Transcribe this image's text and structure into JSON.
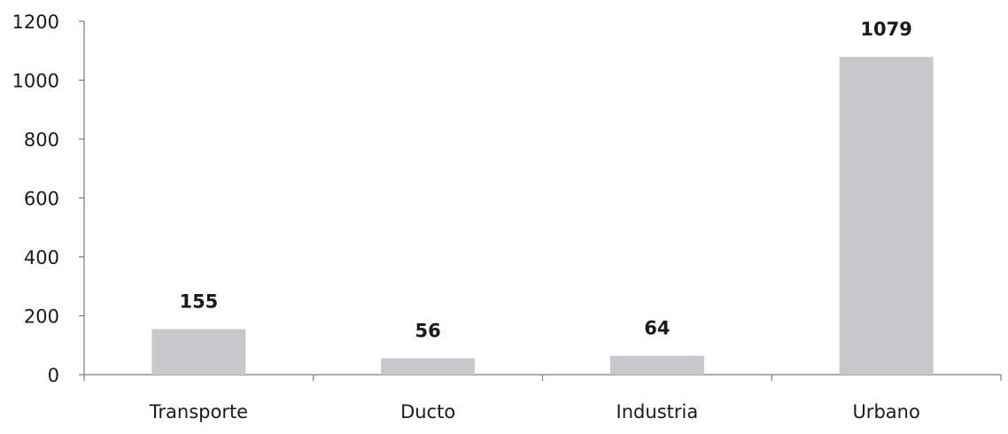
{
  "chart_data": {
    "type": "bar",
    "categories": [
      "Transporte",
      "Ducto",
      "Industria",
      "Urbano"
    ],
    "values": [
      155,
      56,
      64,
      1079
    ],
    "data_labels": [
      "155",
      "56",
      "64",
      "1079"
    ],
    "title": "",
    "xlabel": "",
    "ylabel": "",
    "ylim": [
      0,
      1200
    ],
    "yticks": [
      0,
      200,
      400,
      600,
      800,
      1000,
      1200
    ],
    "ytick_labels": [
      "0",
      "200",
      "400",
      "600",
      "800",
      "1000",
      "1200"
    ],
    "grid": false,
    "legend": "none",
    "bar_color": "#c8c8cc",
    "axis_color": "#7a7a7a",
    "text_color": "#1a1a1a"
  }
}
